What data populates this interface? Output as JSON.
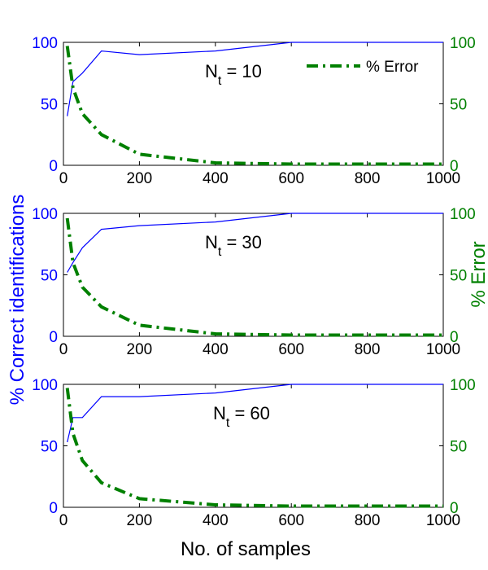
{
  "figure": {
    "ylabel_left": "% Correct identifications",
    "ylabel_right": "% Error",
    "xlabel": "No. of samples",
    "colors": {
      "correct": "#0000ff",
      "error": "#008000",
      "axes": "#000000"
    }
  },
  "chart_data": [
    {
      "type": "line",
      "annotation_main": "N",
      "annotation_sub": "t",
      "annotation_rest": " = 10",
      "legend_label": "% Error",
      "legend_position": "top-right",
      "xlim": [
        0,
        1000
      ],
      "ylim_left": [
        0,
        100
      ],
      "ylim_right": [
        0,
        100
      ],
      "x_ticks": [
        "0",
        "200",
        "400",
        "600",
        "800",
        "1000"
      ],
      "y_ticks_left": [
        "0",
        "50",
        "100"
      ],
      "y_ticks_right": [
        "0",
        "50",
        "100"
      ],
      "series": [
        {
          "axis": "left",
          "style": "solid",
          "x": [
            10,
            25,
            50,
            100,
            200,
            400,
            600,
            800,
            1000
          ],
          "y": [
            40,
            68,
            75,
            93,
            90,
            93,
            100,
            100,
            100
          ]
        },
        {
          "name": "% Error",
          "axis": "right",
          "style": "dash-dot",
          "x": [
            10,
            25,
            50,
            100,
            200,
            400,
            600,
            800,
            1000
          ],
          "y": [
            97,
            63,
            42,
            25,
            9,
            2,
            1,
            1,
            1
          ]
        }
      ]
    },
    {
      "type": "line",
      "annotation_main": "N",
      "annotation_sub": "t",
      "annotation_rest": " = 30",
      "xlim": [
        0,
        1000
      ],
      "ylim_left": [
        0,
        100
      ],
      "ylim_right": [
        0,
        100
      ],
      "x_ticks": [
        "0",
        "200",
        "400",
        "600",
        "800",
        "1000"
      ],
      "y_ticks_left": [
        "0",
        "50",
        "100"
      ],
      "y_ticks_right": [
        "0",
        "50",
        "100"
      ],
      "series": [
        {
          "axis": "left",
          "style": "solid",
          "x": [
            10,
            25,
            50,
            100,
            200,
            400,
            600,
            800,
            1000
          ],
          "y": [
            52,
            60,
            72,
            87,
            90,
            93,
            100,
            100,
            100
          ]
        },
        {
          "axis": "right",
          "style": "dash-dot",
          "x": [
            10,
            25,
            50,
            100,
            200,
            400,
            600,
            800,
            1000
          ],
          "y": [
            96,
            60,
            40,
            24,
            9,
            2,
            1,
            1,
            1
          ]
        }
      ]
    },
    {
      "type": "line",
      "annotation_main": "N",
      "annotation_sub": "t",
      "annotation_rest": " = 60",
      "xlim": [
        0,
        1000
      ],
      "ylim_left": [
        0,
        100
      ],
      "ylim_right": [
        0,
        100
      ],
      "x_ticks": [
        "0",
        "200",
        "400",
        "600",
        "800",
        "1000"
      ],
      "y_ticks_left": [
        "0",
        "50",
        "100"
      ],
      "y_ticks_right": [
        "0",
        "50",
        "100"
      ],
      "series": [
        {
          "axis": "left",
          "style": "solid",
          "x": [
            10,
            25,
            50,
            100,
            200,
            400,
            600,
            800,
            1000
          ],
          "y": [
            53,
            73,
            73,
            90,
            90,
            93,
            100,
            100,
            100
          ]
        },
        {
          "axis": "right",
          "style": "dash-dot",
          "x": [
            10,
            25,
            50,
            100,
            200,
            400,
            600,
            800,
            1000
          ],
          "y": [
            97,
            60,
            38,
            20,
            7,
            2,
            1,
            1,
            1
          ]
        }
      ]
    }
  ]
}
